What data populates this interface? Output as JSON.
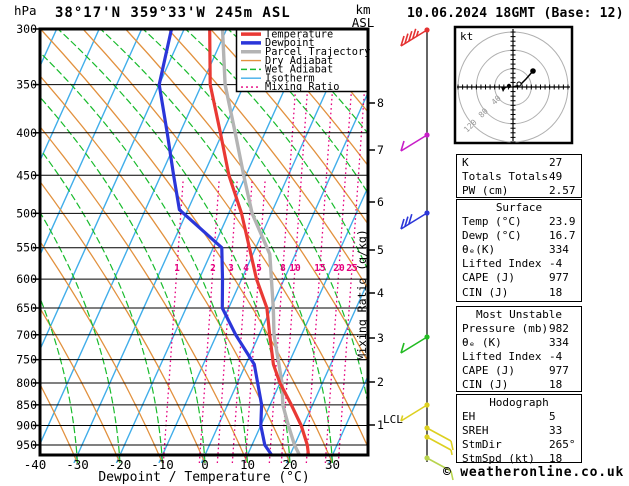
{
  "header": {
    "pressure_unit": "hPa",
    "title": "38°17'N 359°33'W 245m ASL",
    "alt_unit_line1": "km",
    "alt_unit_line2": "ASL",
    "datetime": "10.06.2024 18GMT (Base: 12)"
  },
  "axes": {
    "x_label": "Dewpoint / Temperature (°C)",
    "x_ticks": [
      -40,
      -30,
      -20,
      -10,
      0,
      10,
      20,
      30
    ],
    "pressure_ticks": [
      300,
      350,
      400,
      450,
      500,
      550,
      600,
      650,
      700,
      750,
      800,
      850,
      900,
      950
    ],
    "km_ticks": [
      8,
      7,
      6,
      5,
      4,
      3,
      2,
      1
    ],
    "lcl_label": "LCL",
    "mixing_ratio_label": "Mixing Ratio (g/kg)",
    "mixing_ratio_ticks": [
      1,
      2,
      3,
      4,
      5,
      8,
      10,
      15,
      20,
      25
    ]
  },
  "legend": [
    {
      "label": "Temperature",
      "color": "#e93934",
      "style": "solid",
      "width": 3.5
    },
    {
      "label": "Dewpoint",
      "color": "#2b36d9",
      "style": "solid",
      "width": 3.5
    },
    {
      "label": "Parcel Trajectory",
      "color": "#b4b4b4",
      "style": "solid",
      "width": 3.5
    },
    {
      "label": "Dry Adiabat",
      "color": "#e2913e",
      "style": "solid",
      "width": 1.4
    },
    {
      "label": "Wet Adiabat",
      "color": "#18bb2c",
      "style": "dashed",
      "width": 1.4
    },
    {
      "label": "Isotherm",
      "color": "#41aeea",
      "style": "solid",
      "width": 1.4
    },
    {
      "label": "Mixing Ratio",
      "color": "#e5007e",
      "style": "dotted",
      "width": 1.4
    }
  ],
  "chart_data": {
    "type": "skewt-log-p sounding",
    "x_axis": {
      "label": "Dewpoint / Temperature (°C)",
      "range": [
        -40,
        38
      ]
    },
    "y_axis": {
      "label": "hPa",
      "range": [
        300,
        982
      ],
      "scale": "log"
    },
    "temperature_profile": [
      [
        300,
        -44
      ],
      [
        350,
        -38
      ],
      [
        400,
        -30.5
      ],
      [
        450,
        -24
      ],
      [
        500,
        -17
      ],
      [
        550,
        -11.5
      ],
      [
        600,
        -6.5
      ],
      [
        650,
        -1
      ],
      [
        700,
        2.5
      ],
      [
        760,
        6.5
      ],
      [
        800,
        10
      ],
      [
        850,
        15
      ],
      [
        900,
        19.5
      ],
      [
        950,
        23
      ],
      [
        980,
        24.5
      ]
    ],
    "dewpoint_profile": [
      [
        300,
        -53
      ],
      [
        350,
        -50
      ],
      [
        400,
        -43
      ],
      [
        450,
        -37
      ],
      [
        495,
        -32
      ],
      [
        550,
        -18
      ],
      [
        600,
        -14.5
      ],
      [
        650,
        -11.5
      ],
      [
        700,
        -5.5
      ],
      [
        760,
        2
      ],
      [
        850,
        8
      ],
      [
        900,
        10
      ],
      [
        950,
        13
      ],
      [
        980,
        16
      ]
    ],
    "parcel_profile": [
      [
        300,
        -41
      ],
      [
        350,
        -34.5
      ],
      [
        400,
        -27
      ],
      [
        450,
        -20.5
      ],
      [
        500,
        -14.5
      ],
      [
        560,
        -6
      ],
      [
        600,
        -3
      ],
      [
        650,
        0.5
      ],
      [
        700,
        3.5
      ],
      [
        800,
        10.5
      ],
      [
        850,
        13
      ],
      [
        900,
        16.5
      ],
      [
        950,
        20
      ],
      [
        980,
        22.5
      ]
    ]
  },
  "wind_barbs": [
    {
      "level": "300",
      "color": "#e43131",
      "side": "L",
      "full": 4,
      "half": 1
    },
    {
      "level": "400",
      "color": "#c81ec8",
      "side": "L",
      "full": 1,
      "half": 0
    },
    {
      "level": "500",
      "color": "#2b36d9",
      "side": "L",
      "full": 3,
      "half": 0
    },
    {
      "level": "700",
      "color": "#22bb22",
      "side": "L",
      "full": 1,
      "half": 0
    },
    {
      "level": "850",
      "color": "#ddd020",
      "side": "L",
      "full": 0,
      "half": 1
    },
    {
      "level": "900",
      "color": "#ddd020",
      "side": "R",
      "full": 1,
      "half": 0
    },
    {
      "level": "925",
      "color": "#ddd020",
      "side": "R",
      "full": 0,
      "half": 1
    },
    {
      "level": "975",
      "color": "#b8d44e",
      "side": "R",
      "full": 1,
      "half": 0
    }
  ],
  "hodograph": {
    "unit_label": "kt",
    "ring_labels": [
      "40",
      "80",
      "120"
    ],
    "trace": [
      [
        0,
        0
      ],
      [
        7,
        -2
      ],
      [
        13,
        -8
      ],
      [
        20,
        -16
      ]
    ],
    "storm_dot": [
      -4,
      -1
    ]
  },
  "panels": [
    {
      "title": "",
      "rows": [
        [
          "K",
          "27"
        ],
        [
          "Totals Totals",
          "49"
        ],
        [
          "PW (cm)",
          "2.57"
        ]
      ]
    },
    {
      "title": "Surface",
      "rows": [
        [
          "Temp (°C)",
          "23.9"
        ],
        [
          "Dewp (°C)",
          "16.7"
        ],
        [
          "θₑ(K)",
          "334"
        ],
        [
          "Lifted Index",
          "-4"
        ],
        [
          "CAPE (J)",
          "977"
        ],
        [
          "CIN (J)",
          "18"
        ]
      ]
    },
    {
      "title": "Most Unstable",
      "rows": [
        [
          "Pressure (mb)",
          "982"
        ],
        [
          "θₑ (K)",
          "334"
        ],
        [
          "Lifted Index",
          "-4"
        ],
        [
          "CAPE (J)",
          "977"
        ],
        [
          "CIN (J)",
          "18"
        ]
      ]
    },
    {
      "title": "Hodograph",
      "rows": [
        [
          "EH",
          "5"
        ],
        [
          "SREH",
          "33"
        ],
        [
          "StmDir",
          "265°"
        ],
        [
          "StmSpd (kt)",
          "18"
        ]
      ]
    }
  ],
  "footer": "© weatheronline.co.uk"
}
